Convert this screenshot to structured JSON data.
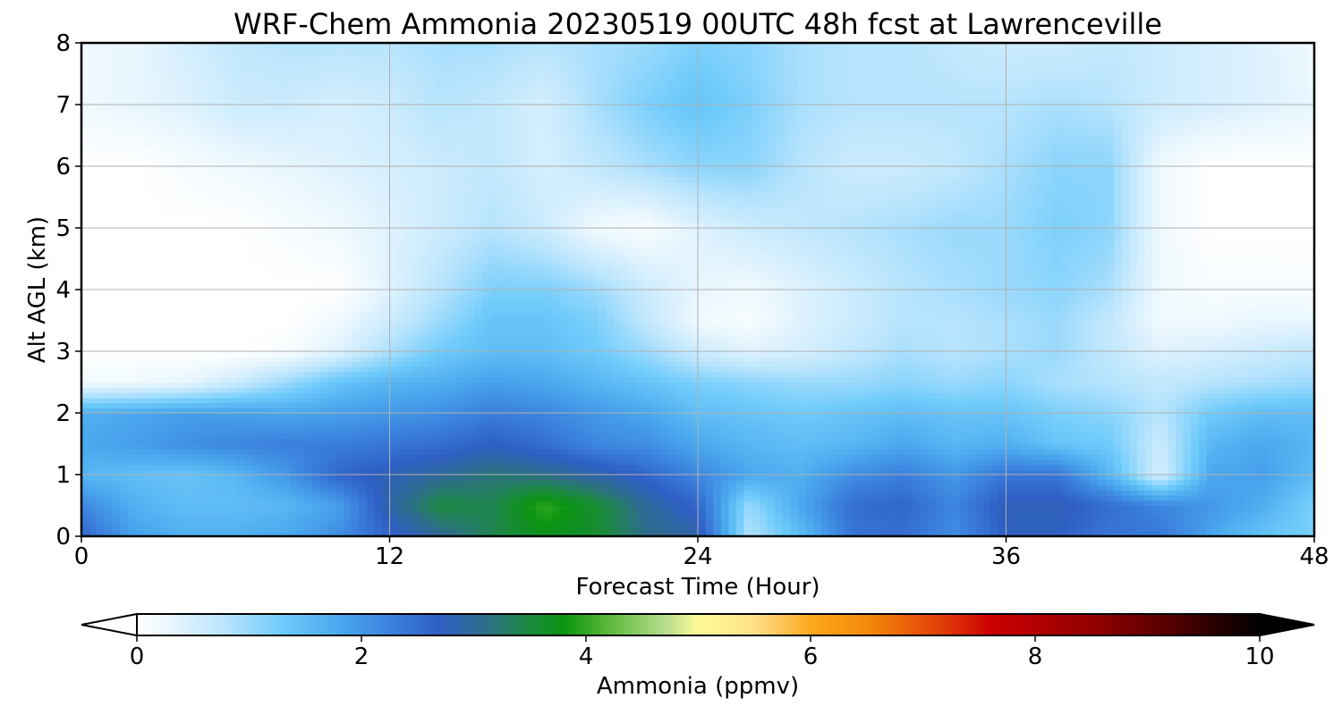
{
  "chart_data": {
    "type": "heatmap",
    "title": "WRF-Chem Ammonia  20230519 00UTC 48h fcst at Lawrenceville",
    "xlabel": "Forecast Time (Hour)",
    "ylabel": "Alt AGL (km)",
    "xlim": [
      0,
      48
    ],
    "ylim": [
      0,
      8
    ],
    "xticks": [
      0,
      12,
      24,
      36,
      48
    ],
    "yticks": [
      0,
      1,
      2,
      3,
      4,
      5,
      6,
      7,
      8
    ],
    "grid": true,
    "colorbar": {
      "label": "Ammonia  (ppmv)",
      "range": [
        0,
        10
      ],
      "ticks": [
        0,
        2,
        4,
        6,
        8,
        10
      ],
      "extend": "both",
      "stops": [
        {
          "v": 0.0,
          "c": "#ffffff"
        },
        {
          "v": 0.3,
          "c": "#e8f6fe"
        },
        {
          "v": 0.8,
          "c": "#b8e4fd"
        },
        {
          "v": 1.3,
          "c": "#6ecbfb"
        },
        {
          "v": 1.8,
          "c": "#4aa8ee"
        },
        {
          "v": 2.3,
          "c": "#3a7edc"
        },
        {
          "v": 2.7,
          "c": "#2f5fc4"
        },
        {
          "v": 3.1,
          "c": "#2e6e8a"
        },
        {
          "v": 3.5,
          "c": "#1b8a3e"
        },
        {
          "v": 3.8,
          "c": "#0a9410"
        },
        {
          "v": 4.2,
          "c": "#5cb83a"
        },
        {
          "v": 4.7,
          "c": "#b4dc8c"
        },
        {
          "v": 5.0,
          "c": "#fffa96"
        },
        {
          "v": 5.5,
          "c": "#fde08a"
        },
        {
          "v": 6.0,
          "c": "#fca81e"
        },
        {
          "v": 6.5,
          "c": "#f48a0a"
        },
        {
          "v": 7.2,
          "c": "#e03a08"
        },
        {
          "v": 7.6,
          "c": "#cc0000"
        },
        {
          "v": 8.6,
          "c": "#8c0000"
        },
        {
          "v": 9.3,
          "c": "#4a0000"
        },
        {
          "v": 10.0,
          "c": "#000000"
        }
      ]
    },
    "x": [
      0,
      2,
      4,
      6,
      8,
      10,
      12,
      14,
      16,
      18,
      20,
      22,
      24,
      26,
      28,
      30,
      32,
      34,
      36,
      38,
      40,
      42,
      44,
      46,
      48
    ],
    "y": [
      0,
      0.5,
      1,
      1.5,
      2,
      2.5,
      3,
      3.5,
      4,
      5,
      6,
      7,
      8
    ],
    "z": [
      [
        2.6,
        1.9,
        1.7,
        1.7,
        1.8,
        2.1,
        2.6,
        3.0,
        3.4,
        3.7,
        3.6,
        3.1,
        2.9,
        0.8,
        1.5,
        2.4,
        2.5,
        2.1,
        2.7,
        2.7,
        2.4,
        2.4,
        1.8,
        1.4,
        1.2
      ],
      [
        2.2,
        1.7,
        1.5,
        1.5,
        1.6,
        1.9,
        2.9,
        3.5,
        3.4,
        4.0,
        3.6,
        3.0,
        2.6,
        1.0,
        1.8,
        2.5,
        2.6,
        2.2,
        2.8,
        2.8,
        2.5,
        2.2,
        2.0,
        1.7,
        1.2
      ],
      [
        1.6,
        1.5,
        1.4,
        1.6,
        2.0,
        2.6,
        2.8,
        3.0,
        3.2,
        3.1,
        2.9,
        2.6,
        2.2,
        1.8,
        1.7,
        2.1,
        2.3,
        2.0,
        2.4,
        2.4,
        1.6,
        0.5,
        1.8,
        1.9,
        1.5
      ],
      [
        1.8,
        1.9,
        2.1,
        2.2,
        2.3,
        2.3,
        2.4,
        2.5,
        2.7,
        2.5,
        2.2,
        2.1,
        1.8,
        1.6,
        1.5,
        1.6,
        1.8,
        1.6,
        1.7,
        1.4,
        1.3,
        0.6,
        1.6,
        1.8,
        1.6
      ],
      [
        1.7,
        1.8,
        1.9,
        1.9,
        1.8,
        1.9,
        2.0,
        2.1,
        2.3,
        2.2,
        2.0,
        1.8,
        1.5,
        1.4,
        1.3,
        1.4,
        1.5,
        1.4,
        1.4,
        1.2,
        1.1,
        0.8,
        1.3,
        1.5,
        1.5
      ],
      [
        0.2,
        0.2,
        0.3,
        0.6,
        1.0,
        1.4,
        1.6,
        1.7,
        1.9,
        1.8,
        1.6,
        1.4,
        1.2,
        1.1,
        1.0,
        1.0,
        1.1,
        1.0,
        1.1,
        0.9,
        0.8,
        0.7,
        0.8,
        0.9,
        1.0
      ],
      [
        0.0,
        0.0,
        0.0,
        0.0,
        0.1,
        0.4,
        0.9,
        1.3,
        1.5,
        1.5,
        1.3,
        1.0,
        0.6,
        0.4,
        0.5,
        0.7,
        0.9,
        0.8,
        0.9,
        1.0,
        0.7,
        0.4,
        0.5,
        0.6,
        0.7
      ],
      [
        0.0,
        0.0,
        0.0,
        0.0,
        0.0,
        0.2,
        0.6,
        1.0,
        1.4,
        1.4,
        1.2,
        0.7,
        0.2,
        0.1,
        0.4,
        0.6,
        0.8,
        0.8,
        0.9,
        1.0,
        0.7,
        0.2,
        0.2,
        0.3,
        0.3
      ],
      [
        0.0,
        0.0,
        0.0,
        0.0,
        0.0,
        0.0,
        0.4,
        0.8,
        1.2,
        1.2,
        1.0,
        0.6,
        0.3,
        0.2,
        0.4,
        0.6,
        0.8,
        0.9,
        1.0,
        1.1,
        0.9,
        0.2,
        0.1,
        0.1,
        0.1
      ],
      [
        0.0,
        0.0,
        0.0,
        0.0,
        0.1,
        0.2,
        0.4,
        0.6,
        0.8,
        0.6,
        0.2,
        0.1,
        0.4,
        0.6,
        0.7,
        0.8,
        0.9,
        1.0,
        1.0,
        1.2,
        1.1,
        0.2,
        0.0,
        0.0,
        0.0
      ],
      [
        0.0,
        0.0,
        0.1,
        0.2,
        0.3,
        0.4,
        0.5,
        0.6,
        0.7,
        0.5,
        0.7,
        0.9,
        1.1,
        1.1,
        0.8,
        0.6,
        0.6,
        0.7,
        0.9,
        1.1,
        1.1,
        0.2,
        0.0,
        0.0,
        0.0
      ],
      [
        0.2,
        0.3,
        0.4,
        0.6,
        0.6,
        0.5,
        0.6,
        0.8,
        0.7,
        0.5,
        0.9,
        1.2,
        1.4,
        1.2,
        0.9,
        0.8,
        0.8,
        0.8,
        0.8,
        0.9,
        0.8,
        0.6,
        0.5,
        0.4,
        0.3
      ],
      [
        0.2,
        0.3,
        0.5,
        0.7,
        0.8,
        0.8,
        0.8,
        0.9,
        0.9,
        0.8,
        0.9,
        1.0,
        1.2,
        1.1,
        0.9,
        0.8,
        0.8,
        0.7,
        0.6,
        0.6,
        0.7,
        0.6,
        0.5,
        0.4,
        0.2
      ]
    ]
  }
}
